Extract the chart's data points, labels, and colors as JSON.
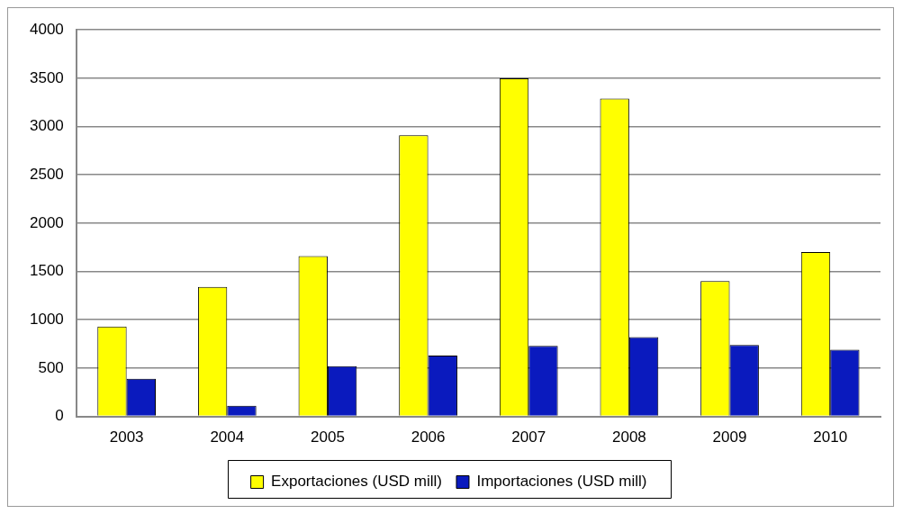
{
  "chart_data": {
    "type": "bar",
    "categories": [
      "2003",
      "2004",
      "2005",
      "2006",
      "2007",
      "2008",
      "2009",
      "2010"
    ],
    "series": [
      {
        "name": "Exportaciones (USD mill)",
        "color": "#ffff00",
        "values": [
          930,
          1340,
          1660,
          2910,
          3500,
          3290,
          1400,
          1700
        ]
      },
      {
        "name": "Importaciones (USD mill)",
        "color": "#0a1abe",
        "values": [
          390,
          110,
          520,
          630,
          730,
          820,
          740,
          690
        ]
      }
    ],
    "ylim": [
      0,
      4000
    ],
    "yticks": [
      0,
      500,
      1000,
      1500,
      2000,
      2500,
      3000,
      3500,
      4000
    ],
    "grid": "y",
    "legend": "bottom"
  }
}
